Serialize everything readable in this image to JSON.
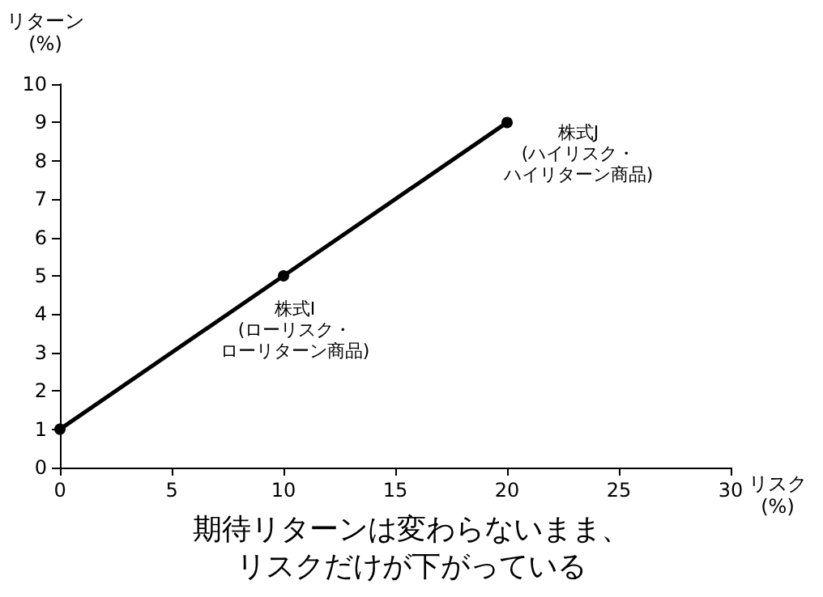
{
  "chart_data": {
    "type": "line",
    "xlabel": "リスク(%)",
    "ylabel": "リターン(%)",
    "x": [
      0,
      10,
      20
    ],
    "series": [
      {
        "color": "#000000",
        "values": [
          1,
          5,
          9
        ]
      }
    ],
    "xlim": [
      0,
      30
    ],
    "xticks": [
      0,
      5,
      10,
      15,
      20,
      25,
      30
    ],
    "ylim": [
      0,
      10
    ],
    "yticks": [
      0,
      1,
      2,
      3,
      4,
      5,
      6,
      7,
      8,
      9,
      10
    ],
    "grid": false,
    "marker": "circle",
    "line_style": "solid",
    "annotations": [
      {
        "text": "株式I(ローリスク・ローリターン商品)",
        "x": 10,
        "y": 5
      },
      {
        "text": "株式J(ハイリスク・ハイリターン商品)",
        "x": 20,
        "y": 9
      },
      "期待リターンは変わらないまま、リスクだけが下がっている"
    ]
  }
}
